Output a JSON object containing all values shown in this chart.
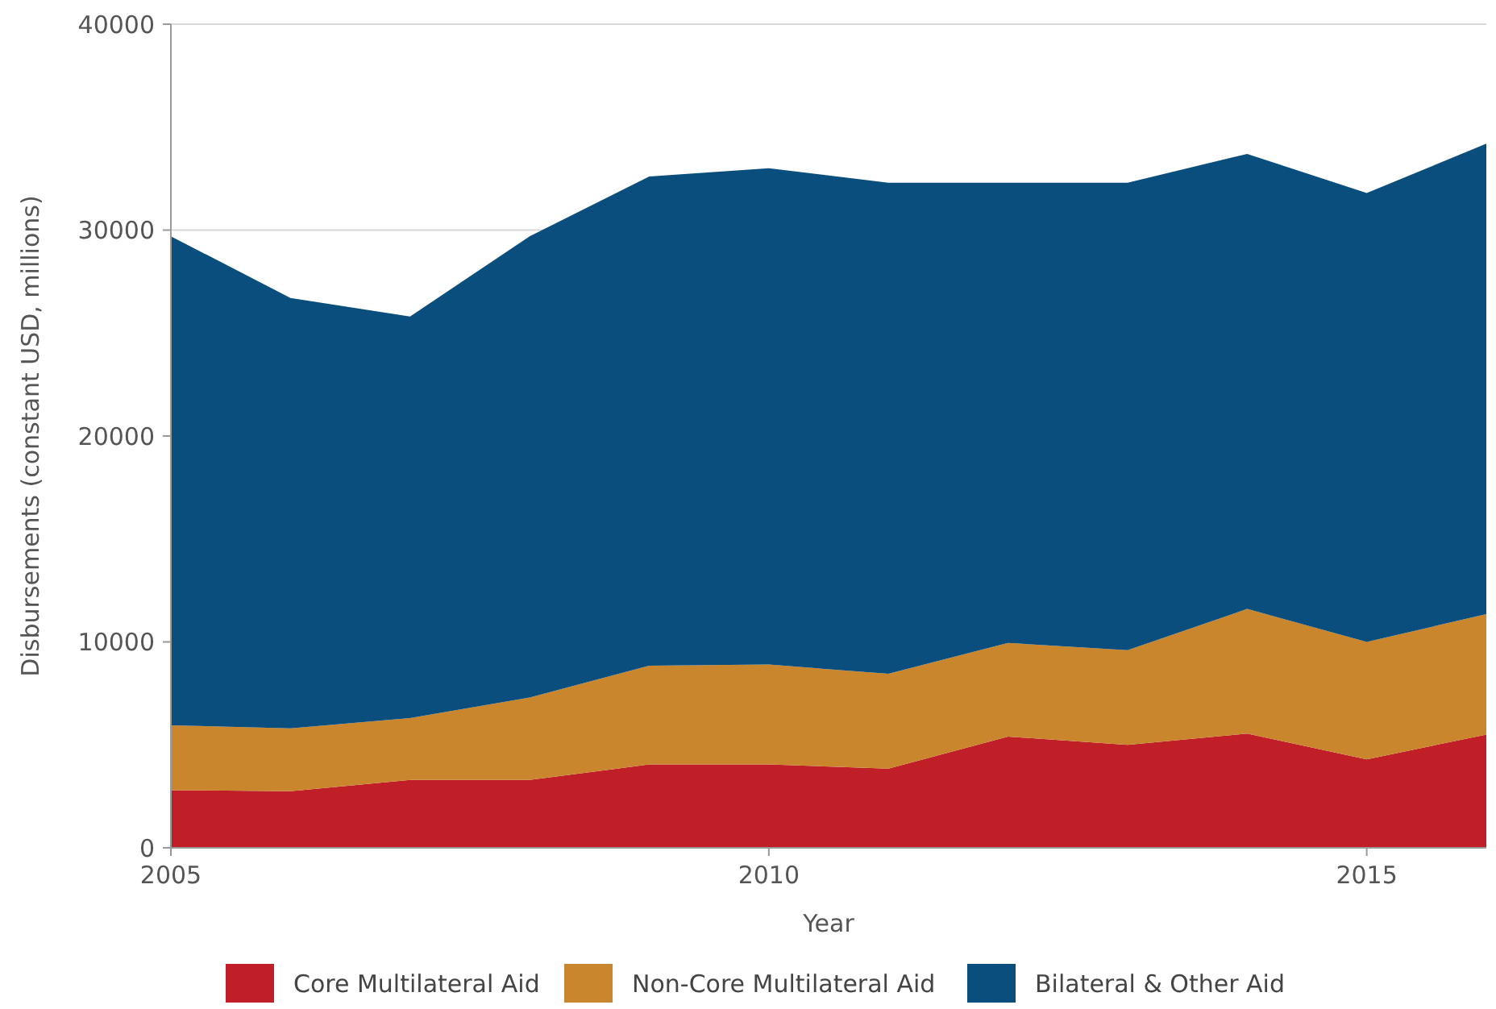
{
  "chart_data": {
    "type": "area",
    "stacked": true,
    "xlabel": "Year",
    "ylabel": "Disbursements (constant USD, millions)",
    "x": [
      2005,
      2006,
      2007,
      2008,
      2009,
      2010,
      2011,
      2012,
      2013,
      2014,
      2015,
      2016
    ],
    "xlim": [
      2005,
      2016
    ],
    "xticks": [
      2005,
      2010,
      2015
    ],
    "ylim": [
      0,
      40000
    ],
    "yticks": [
      0,
      10000,
      20000,
      30000,
      40000
    ],
    "grid": "y",
    "legend": "bottom",
    "series": [
      {
        "name": "Core Multilateral Aid",
        "color": "#c01f28",
        "values": [
          2800,
          2750,
          3300,
          3300,
          4050,
          4050,
          3850,
          5400,
          5000,
          5550,
          4300,
          5500
        ]
      },
      {
        "name": "Non-Core Multilateral Aid",
        "color": "#c9862c",
        "values": [
          3150,
          3050,
          3000,
          4000,
          4800,
          4850,
          4600,
          4550,
          4600,
          6050,
          5700,
          5850
        ]
      },
      {
        "name": "Bilateral & Other Aid",
        "color": "#0a4e7d",
        "values": [
          23750,
          20900,
          19500,
          22400,
          23750,
          24100,
          23850,
          22350,
          22700,
          22100,
          21800,
          22850
        ]
      }
    ]
  }
}
